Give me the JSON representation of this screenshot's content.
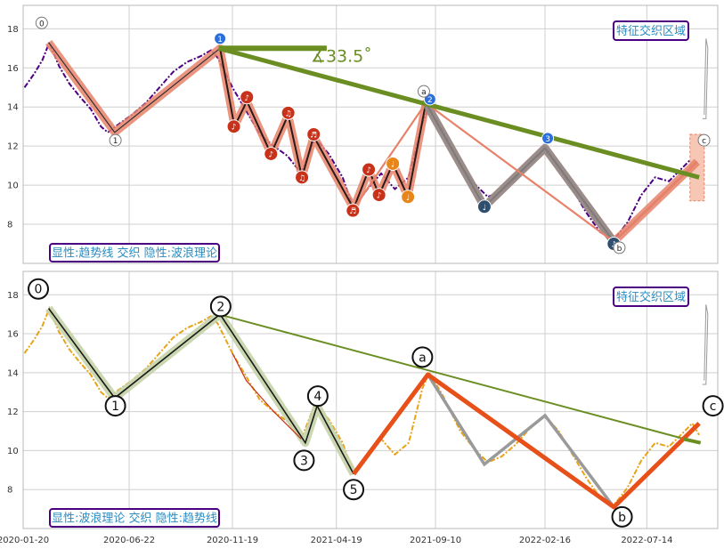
{
  "chart_data": [
    {
      "type": "line",
      "panel": "top",
      "ylim": [
        6.0,
        19.2
      ],
      "yticks": [
        "8",
        "10",
        "12",
        "14",
        "16",
        "18"
      ],
      "xlim": [
        "2020-01-20",
        "2022-10-25"
      ],
      "xticks": [
        "2020-01-20",
        "2020-06-22",
        "2020-11-19",
        "2021-04-19",
        "2021-09-10",
        "2022-02-16",
        "2022-07-14"
      ],
      "annotation_label": "显性:趋势线 交织 隐性:波浪理论",
      "zone_label": "特征交织区域",
      "angle_label": "∡33.5˚",
      "colors": {
        "price": "#4b0082",
        "trend": "#6b8e23",
        "wave": "#e8826a",
        "zone": "#2a8bbf",
        "box_border": "#4b0082"
      },
      "series": [
        {
          "name": "",
          "kind": "price",
          "points": [
            [
              "2020-01-22",
              15.0
            ],
            [
              "2020-02-05",
              15.7
            ],
            [
              "2020-02-17",
              16.4
            ],
            [
              "2020-02-27",
              17.3
            ],
            [
              "2020-03-12",
              16.1
            ],
            [
              "2020-03-27",
              15.2
            ],
            [
              "2020-04-12",
              14.5
            ],
            [
              "2020-04-27",
              13.9
            ],
            [
              "2020-05-12",
              13.0
            ],
            [
              "2020-05-22",
              12.7
            ],
            [
              "2020-06-06",
              13.1
            ],
            [
              "2020-06-26",
              13.6
            ],
            [
              "2020-07-16",
              14.2
            ],
            [
              "2020-08-05",
              15.0
            ],
            [
              "2020-08-25",
              15.8
            ],
            [
              "2020-09-14",
              16.3
            ],
            [
              "2020-10-04",
              16.6
            ],
            [
              "2020-10-19",
              16.9
            ],
            [
              "2020-10-29",
              16.5
            ],
            [
              "2020-11-19",
              15.0
            ],
            [
              "2020-12-09",
              13.8
            ],
            [
              "2020-12-29",
              12.6
            ],
            [
              "2021-01-18",
              12.0
            ],
            [
              "2021-02-07",
              11.5
            ],
            [
              "2021-02-27",
              10.6
            ],
            [
              "2021-03-19",
              12.4
            ],
            [
              "2021-04-08",
              11.6
            ],
            [
              "2021-04-28",
              10.4
            ],
            [
              "2021-05-14",
              8.8
            ],
            [
              "2021-06-03",
              9.8
            ],
            [
              "2021-06-23",
              10.6
            ],
            [
              "2021-07-13",
              9.8
            ],
            [
              "2021-08-02",
              10.4
            ],
            [
              "2021-08-22",
              13.2
            ],
            [
              "2021-09-01",
              14.0
            ],
            [
              "2021-09-21",
              12.8
            ],
            [
              "2021-10-16",
              11.0
            ],
            [
              "2021-11-05",
              10.1
            ],
            [
              "2021-11-25",
              9.4
            ],
            [
              "2021-12-15",
              9.7
            ],
            [
              "2022-01-04",
              10.3
            ],
            [
              "2022-01-24",
              11.1
            ],
            [
              "2022-02-16",
              11.8
            ],
            [
              "2022-03-08",
              11.0
            ],
            [
              "2022-03-28",
              9.8
            ],
            [
              "2022-04-17",
              8.6
            ],
            [
              "2022-05-07",
              7.6
            ],
            [
              "2022-05-27",
              7.2
            ],
            [
              "2022-06-16",
              8.1
            ],
            [
              "2022-07-06",
              9.5
            ],
            [
              "2022-07-26",
              10.4
            ],
            [
              "2022-08-15",
              10.2
            ],
            [
              "2022-09-04",
              10.9
            ],
            [
              "2022-09-18",
              11.4
            ],
            [
              "2022-09-28",
              10.8
            ]
          ]
        },
        {
          "name": "",
          "kind": "wave",
          "points": [
            [
              "2020-02-26",
              17.3
            ],
            [
              "2020-06-01",
              12.7
            ],
            [
              "2020-11-01",
              17.0
            ],
            [
              "2020-11-22",
              13.0
            ],
            [
              "2020-12-10",
              14.3
            ],
            [
              "2021-01-14",
              11.6
            ],
            [
              "2021-02-08",
              13.6
            ],
            [
              "2021-02-28",
              10.4
            ],
            [
              "2021-03-17",
              12.5
            ],
            [
              "2021-05-14",
              8.8
            ],
            [
              "2021-06-05",
              10.8
            ],
            [
              "2021-06-20",
              9.5
            ],
            [
              "2021-07-10",
              11.1
            ],
            [
              "2021-08-01",
              9.4
            ],
            [
              "2021-08-27",
              14.2
            ],
            [
              "2021-11-20",
              8.9
            ],
            [
              "2022-02-16",
              11.9
            ],
            [
              "2022-05-27",
              7.1
            ],
            [
              "2022-09-25",
              11.2
            ]
          ]
        },
        {
          "name": "",
          "kind": "trend",
          "points": [
            [
              "2020-10-30",
              17.0
            ],
            [
              "2022-09-28",
              10.4
            ]
          ]
        },
        {
          "name": "",
          "kind": "angle_ref",
          "points": [
            [
              "2020-10-30",
              17.0
            ],
            [
              "2021-04-05",
              17.0
            ]
          ]
        }
      ],
      "point_labels": [
        {
          "text": "0",
          "x": "2020-02-16",
          "y": 18.3
        },
        {
          "text": "1",
          "x": "2020-06-02",
          "y": 12.3
        },
        {
          "text": "a",
          "x": "2021-08-24",
          "y": 14.8
        },
        {
          "text": "b",
          "x": "2022-06-04",
          "y": 6.8
        },
        {
          "text": "c",
          "x": "2022-10-05",
          "y": 12.3
        }
      ],
      "markers": [
        {
          "text": "1",
          "x": "2020-11-01",
          "y": 17.5,
          "color": "#2a6fdb"
        },
        {
          "text": "2",
          "x": "2021-09-02",
          "y": 14.4,
          "color": "#2a6fdb"
        },
        {
          "text": "3",
          "x": "2022-02-20",
          "y": 12.4,
          "color": "#2a6fdb"
        },
        {
          "text": "♪",
          "x": "2020-11-21",
          "y": 13.0,
          "color": "#c8321a"
        },
        {
          "text": "♪",
          "x": "2020-12-10",
          "y": 14.5,
          "color": "#c8321a"
        },
        {
          "text": "♪",
          "x": "2021-01-14",
          "y": 11.6,
          "color": "#c8321a"
        },
        {
          "text": "♫",
          "x": "2021-02-08",
          "y": 13.7,
          "color": "#c8321a"
        },
        {
          "text": "♫",
          "x": "2021-02-28",
          "y": 10.4,
          "color": "#c8321a"
        },
        {
          "text": "♬",
          "x": "2021-03-17",
          "y": 12.6,
          "color": "#c8321a"
        },
        {
          "text": "♬",
          "x": "2021-05-13",
          "y": 8.7,
          "color": "#c8321a"
        },
        {
          "text": "♪",
          "x": "2021-06-05",
          "y": 10.8,
          "color": "#c8321a"
        },
        {
          "text": "♪",
          "x": "2021-06-20",
          "y": 9.5,
          "color": "#c8321a"
        },
        {
          "text": "♩",
          "x": "2021-07-10",
          "y": 11.1,
          "color": "#e8861a"
        },
        {
          "text": "♩",
          "x": "2021-08-01",
          "y": 9.4,
          "color": "#e8861a"
        },
        {
          "text": "♩",
          "x": "2021-11-20",
          "y": 8.9,
          "color": "#2f4f6f"
        },
        {
          "text": "♪",
          "x": "2022-05-27",
          "y": 7.0,
          "color": "#2f4f6f"
        }
      ]
    },
    {
      "type": "line",
      "panel": "bottom",
      "ylim": [
        6.0,
        19.2
      ],
      "yticks": [
        "8",
        "10",
        "12",
        "14",
        "16",
        "18"
      ],
      "xlim": [
        "2020-01-20",
        "2022-10-25"
      ],
      "xticks": [
        "2020-01-20",
        "2020-06-22",
        "2020-11-19",
        "2021-04-19",
        "2021-09-10",
        "2022-02-16",
        "2022-07-14"
      ],
      "annotation_label": "显性:波浪理论 交织 隐性:趋势线",
      "zone_label": "特征交织区域",
      "colors": {
        "price": "#e8a317",
        "trend": "#6b8e23",
        "wave": "#e8501a",
        "zone": "#2a8bbf",
        "box_border": "#4b0082"
      },
      "series": [
        {
          "name": "",
          "kind": "price",
          "points": [
            [
              "2020-01-22",
              15.0
            ],
            [
              "2020-02-05",
              15.7
            ],
            [
              "2020-02-17",
              16.4
            ],
            [
              "2020-02-27",
              17.3
            ],
            [
              "2020-03-12",
              16.1
            ],
            [
              "2020-03-27",
              15.2
            ],
            [
              "2020-04-12",
              14.5
            ],
            [
              "2020-04-27",
              13.9
            ],
            [
              "2020-05-12",
              13.0
            ],
            [
              "2020-05-22",
              12.7
            ],
            [
              "2020-06-06",
              13.1
            ],
            [
              "2020-06-26",
              13.6
            ],
            [
              "2020-07-16",
              14.2
            ],
            [
              "2020-08-05",
              15.0
            ],
            [
              "2020-08-25",
              15.8
            ],
            [
              "2020-09-14",
              16.3
            ],
            [
              "2020-10-04",
              16.6
            ],
            [
              "2020-10-19",
              16.9
            ],
            [
              "2020-10-29",
              16.5
            ],
            [
              "2020-11-19",
              15.0
            ],
            [
              "2020-12-09",
              13.8
            ],
            [
              "2020-12-29",
              12.6
            ],
            [
              "2021-01-18",
              12.0
            ],
            [
              "2021-02-07",
              11.5
            ],
            [
              "2021-02-27",
              10.6
            ],
            [
              "2021-03-19",
              12.4
            ],
            [
              "2021-04-08",
              11.6
            ],
            [
              "2021-04-28",
              10.4
            ],
            [
              "2021-05-14",
              8.8
            ],
            [
              "2021-06-03",
              9.8
            ],
            [
              "2021-06-23",
              10.6
            ],
            [
              "2021-07-13",
              9.8
            ],
            [
              "2021-08-02",
              10.4
            ],
            [
              "2021-08-22",
              13.2
            ],
            [
              "2021-09-01",
              14.0
            ],
            [
              "2021-09-21",
              12.8
            ],
            [
              "2021-10-16",
              11.0
            ],
            [
              "2021-11-05",
              10.1
            ],
            [
              "2021-11-25",
              9.4
            ],
            [
              "2021-12-15",
              9.7
            ],
            [
              "2022-01-04",
              10.3
            ],
            [
              "2022-01-24",
              11.1
            ],
            [
              "2022-02-16",
              11.8
            ],
            [
              "2022-03-08",
              11.0
            ],
            [
              "2022-03-28",
              9.8
            ],
            [
              "2022-04-17",
              8.6
            ],
            [
              "2022-05-07",
              7.6
            ],
            [
              "2022-05-27",
              7.2
            ],
            [
              "2022-06-16",
              8.1
            ],
            [
              "2022-07-06",
              9.5
            ],
            [
              "2022-07-26",
              10.4
            ],
            [
              "2022-08-15",
              10.2
            ],
            [
              "2022-09-04",
              10.9
            ],
            [
              "2022-09-18",
              11.4
            ],
            [
              "2022-09-28",
              10.8
            ]
          ]
        },
        {
          "name": "",
          "kind": "wave_main",
          "points": [
            [
              "2020-02-26",
              17.3
            ],
            [
              "2020-06-01",
              12.7
            ],
            [
              "2020-11-01",
              17.0
            ],
            [
              "2021-03-05",
              10.4
            ],
            [
              "2021-03-22",
              12.3
            ],
            [
              "2021-05-14",
              8.8
            ]
          ]
        },
        {
          "name": "",
          "kind": "wave_correction",
          "points": [
            [
              "2021-05-14",
              8.8
            ],
            [
              "2021-08-30",
              13.9
            ],
            [
              "2022-05-27",
              7.1
            ],
            [
              "2022-09-28",
              11.4
            ]
          ]
        },
        {
          "name": "",
          "kind": "trend",
          "points": [
            [
              "2020-10-30",
              17.0
            ],
            [
              "2022-09-28",
              10.4
            ]
          ]
        }
      ],
      "point_labels": [
        {
          "text": "0",
          "x": "2020-02-11",
          "y": 18.3
        },
        {
          "text": "1",
          "x": "2020-06-02",
          "y": 12.3
        },
        {
          "text": "2",
          "x": "2020-11-02",
          "y": 17.4
        },
        {
          "text": "3",
          "x": "2021-03-03",
          "y": 9.5
        },
        {
          "text": "4",
          "x": "2021-03-23",
          "y": 12.8
        },
        {
          "text": "5",
          "x": "2021-05-14",
          "y": 8.0
        },
        {
          "text": "a",
          "x": "2021-08-22",
          "y": 14.8
        },
        {
          "text": "b",
          "x": "2022-06-08",
          "y": 6.6
        },
        {
          "text": "c",
          "x": "2022-10-18",
          "y": 12.3
        }
      ]
    }
  ]
}
